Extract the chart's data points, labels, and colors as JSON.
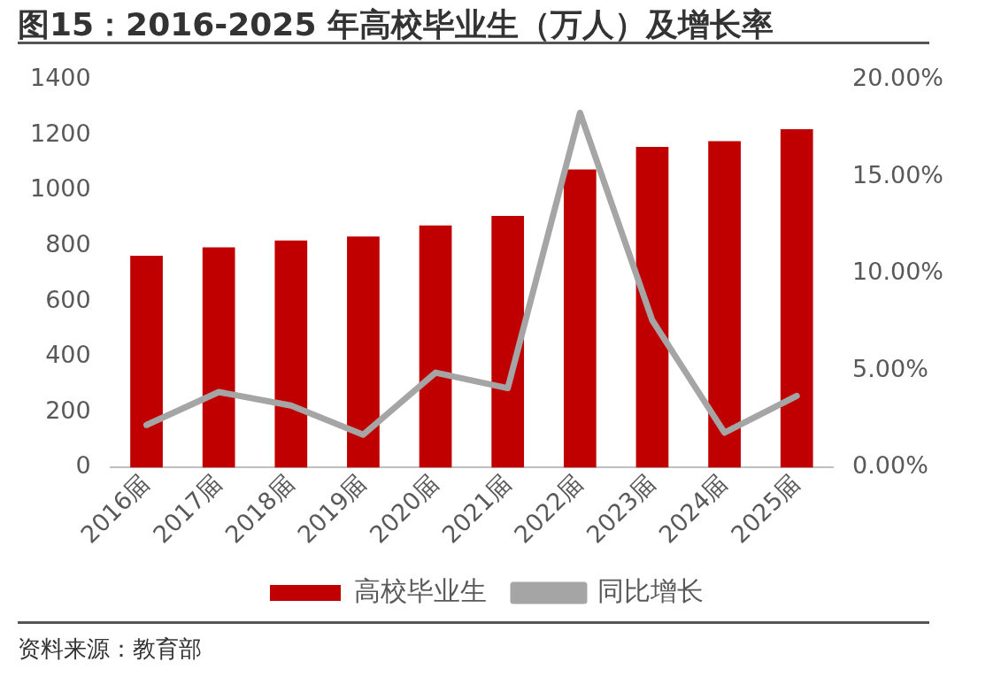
{
  "chart_data": {
    "type": "bar",
    "title": "图15：2016-2025 年高校毕业生（万人）及增长率",
    "categories": [
      "2016届",
      "2017届",
      "2018届",
      "2019届",
      "2020届",
      "2021届",
      "2022届",
      "2023届",
      "2024届",
      "2025届"
    ],
    "series": [
      {
        "name": "高校毕业生",
        "color": "#c00000",
        "values": [
          765,
          795,
          820,
          834,
          874,
          909,
          1076,
          1158,
          1179,
          1222
        ]
      },
      {
        "name": "同比增长",
        "type": "line",
        "axis": "y2",
        "color": "#a5a5a5",
        "values": [
          2.2,
          3.9,
          3.2,
          1.7,
          4.9,
          4.1,
          18.3,
          7.6,
          1.8,
          3.7
        ]
      }
    ],
    "ylim": [
      0,
      1400
    ],
    "yticks": [
      0,
      200,
      400,
      600,
      800,
      1000,
      1200,
      1400
    ],
    "y2lim": [
      0,
      20
    ],
    "y2ticks": [
      {
        "value": 0,
        "label": "0.00%"
      },
      {
        "value": 5,
        "label": "5.00%"
      },
      {
        "value": 10,
        "label": "10.00%"
      },
      {
        "value": 15,
        "label": "15.00%"
      },
      {
        "value": 20,
        "label": "20.00%"
      }
    ],
    "grid": false,
    "legend": "bottom",
    "marker": "none",
    "line_style": "solid",
    "annotations": [
      "资料来源：教育部"
    ]
  }
}
